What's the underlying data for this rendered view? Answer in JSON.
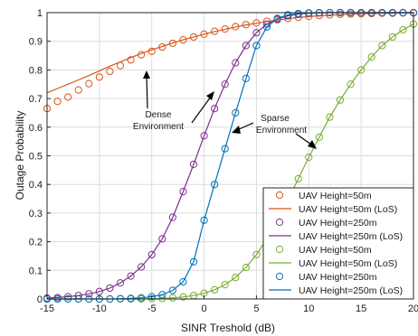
{
  "chart_data": {
    "type": "line",
    "xlabel": "SINR Treshold (dB)",
    "ylabel": "Outage Probability",
    "xlim": [
      -15,
      20
    ],
    "ylim": [
      0,
      1
    ],
    "xticks": [
      -15,
      -10,
      -5,
      0,
      5,
      10,
      15,
      20
    ],
    "yticks": [
      0,
      0.1,
      0.2,
      0.3,
      0.4,
      0.5,
      0.6,
      0.7,
      0.8,
      0.9,
      1
    ],
    "xtick_labels": [
      "-15",
      "-10",
      "-5",
      "0",
      "5",
      "10",
      "15",
      "20"
    ],
    "ytick_labels": [
      "0",
      "0.1",
      "0.2",
      "0.3",
      "0.4",
      "0.5",
      "0.6",
      "0.7",
      "0.8",
      "0.9",
      "1"
    ],
    "grid": true,
    "legend_position": "bottom-right",
    "annotations": [
      {
        "lines": [
          "Dense",
          "Environment"
        ]
      },
      {
        "lines": [
          "Sparse",
          "Environment"
        ]
      }
    ],
    "series": [
      {
        "name": "UAV Height=50m",
        "style": "markers",
        "color": "#D95319",
        "x": [
          -15,
          -14,
          -13,
          -12,
          -11,
          -10,
          -9,
          -8,
          -7,
          -6,
          -5,
          -4,
          -3,
          -2,
          -1,
          0,
          1,
          2,
          3,
          4,
          5,
          6,
          7,
          8,
          9,
          10,
          11,
          12,
          13,
          14,
          15,
          16,
          17,
          18,
          19,
          20
        ],
        "y": [
          0.665,
          0.69,
          0.705,
          0.73,
          0.752,
          0.775,
          0.795,
          0.815,
          0.835,
          0.853,
          0.865,
          0.88,
          0.893,
          0.905,
          0.915,
          0.925,
          0.935,
          0.943,
          0.951,
          0.958,
          0.964,
          0.97,
          0.975,
          0.98,
          0.984,
          0.987,
          0.99,
          0.992,
          0.994,
          0.995,
          0.996,
          0.997,
          0.998,
          0.998,
          0.999,
          0.999
        ]
      },
      {
        "name": "UAV Height=50m (LoS)",
        "style": "line",
        "color": "#D95319",
        "x": [
          -15,
          -14,
          -13,
          -12,
          -11,
          -10,
          -9,
          -8,
          -7,
          -6,
          -5,
          -4,
          -3,
          -2,
          -1,
          0,
          1,
          2,
          3,
          4,
          5,
          6,
          7,
          8,
          9,
          10,
          11,
          12,
          13,
          14,
          15,
          16,
          17,
          18,
          19,
          20
        ],
        "y": [
          0.72,
          0.735,
          0.75,
          0.765,
          0.78,
          0.797,
          0.813,
          0.828,
          0.843,
          0.857,
          0.87,
          0.882,
          0.894,
          0.905,
          0.915,
          0.925,
          0.934,
          0.942,
          0.95,
          0.957,
          0.963,
          0.969,
          0.974,
          0.979,
          0.983,
          0.986,
          0.989,
          0.991,
          0.993,
          0.995,
          0.996,
          0.997,
          0.998,
          0.998,
          0.999,
          0.999
        ]
      },
      {
        "name": "UAV Height=250m",
        "style": "markers",
        "color": "#7E2F8E",
        "x": [
          -15,
          -14,
          -13,
          -12,
          -11,
          -10,
          -9,
          -8,
          -7,
          -6,
          -5,
          -4,
          -3,
          -2,
          -1,
          0,
          1,
          2,
          3,
          4,
          5,
          6,
          7,
          8,
          9,
          10,
          11,
          12,
          13,
          14,
          15,
          16,
          17,
          18,
          19,
          20
        ],
        "y": [
          0.003,
          0.005,
          0.008,
          0.012,
          0.018,
          0.026,
          0.038,
          0.056,
          0.08,
          0.112,
          0.155,
          0.21,
          0.285,
          0.375,
          0.47,
          0.57,
          0.665,
          0.75,
          0.825,
          0.885,
          0.93,
          0.96,
          0.978,
          0.989,
          0.995,
          0.998,
          0.999,
          1.0,
          1.0,
          1.0,
          1.0,
          1.0,
          1.0,
          1.0,
          1.0,
          1.0
        ]
      },
      {
        "name": "UAV Height=250m (LoS)",
        "style": "line",
        "color": "#7E2F8E",
        "x": [
          -15,
          -14,
          -13,
          -12,
          -11,
          -10,
          -9,
          -8,
          -7,
          -6,
          -5,
          -4,
          -3,
          -2,
          -1,
          0,
          1,
          2,
          3,
          4,
          5,
          6,
          7,
          8,
          9,
          10,
          11,
          12,
          13,
          14,
          15,
          16,
          17,
          18,
          19,
          20
        ],
        "y": [
          0.003,
          0.005,
          0.008,
          0.012,
          0.018,
          0.026,
          0.038,
          0.056,
          0.08,
          0.112,
          0.155,
          0.21,
          0.285,
          0.375,
          0.47,
          0.57,
          0.665,
          0.75,
          0.825,
          0.885,
          0.93,
          0.96,
          0.978,
          0.989,
          0.995,
          0.998,
          0.999,
          1.0,
          1.0,
          1.0,
          1.0,
          1.0,
          1.0,
          1.0,
          1.0,
          1.0
        ]
      },
      {
        "name": "UAV Height=50m",
        "style": "markers",
        "color": "#77AC30",
        "x": [
          -15,
          -14,
          -13,
          -12,
          -11,
          -10,
          -9,
          -8,
          -7,
          -6,
          -5,
          -4,
          -3,
          -2,
          -1,
          0,
          1,
          2,
          3,
          4,
          5,
          6,
          7,
          8,
          9,
          10,
          11,
          12,
          13,
          14,
          15,
          16,
          17,
          18,
          19,
          20
        ],
        "y": [
          0,
          0,
          0,
          0,
          0,
          0,
          0,
          0,
          0,
          0,
          0.001,
          0.002,
          0.004,
          0.007,
          0.012,
          0.02,
          0.032,
          0.05,
          0.075,
          0.11,
          0.155,
          0.21,
          0.275,
          0.345,
          0.42,
          0.495,
          0.565,
          0.635,
          0.695,
          0.75,
          0.8,
          0.845,
          0.885,
          0.915,
          0.94,
          0.96
        ]
      },
      {
        "name": "UAV Height=50m (LoS)",
        "style": "line",
        "color": "#77AC30",
        "x": [
          -15,
          -14,
          -13,
          -12,
          -11,
          -10,
          -9,
          -8,
          -7,
          -6,
          -5,
          -4,
          -3,
          -2,
          -1,
          0,
          1,
          2,
          3,
          4,
          5,
          6,
          7,
          8,
          9,
          10,
          11,
          12,
          13,
          14,
          15,
          16,
          17,
          18,
          19,
          20
        ],
        "y": [
          0,
          0,
          0,
          0,
          0,
          0,
          0,
          0,
          0,
          0,
          0.001,
          0.002,
          0.004,
          0.007,
          0.012,
          0.02,
          0.032,
          0.05,
          0.075,
          0.11,
          0.155,
          0.21,
          0.275,
          0.345,
          0.42,
          0.495,
          0.565,
          0.635,
          0.695,
          0.75,
          0.8,
          0.845,
          0.885,
          0.915,
          0.94,
          0.96
        ]
      },
      {
        "name": "UAV Height=250m",
        "style": "markers",
        "color": "#0072BD",
        "x": [
          -15,
          -14,
          -13,
          -12,
          -11,
          -10,
          -9,
          -8,
          -7,
          -6,
          -5,
          -4,
          -3,
          -2,
          -1,
          0,
          1,
          2,
          3,
          4,
          5,
          6,
          7,
          8,
          9,
          10,
          11,
          12,
          13,
          14,
          15,
          16,
          17,
          18,
          19,
          20
        ],
        "y": [
          0,
          0,
          0,
          0,
          0,
          0,
          0,
          0.001,
          0.002,
          0.004,
          0.008,
          0.015,
          0.03,
          0.06,
          0.13,
          0.275,
          0.4,
          0.525,
          0.65,
          0.77,
          0.885,
          0.95,
          0.98,
          0.992,
          0.997,
          0.999,
          1.0,
          1.0,
          1.0,
          1.0,
          1.0,
          1.0,
          1.0,
          1.0,
          1.0,
          1.0
        ]
      },
      {
        "name": "UAV Height=250m (LoS)",
        "style": "line",
        "color": "#0072BD",
        "x": [
          -15,
          -14,
          -13,
          -12,
          -11,
          -10,
          -9,
          -8,
          -7,
          -6,
          -5,
          -4,
          -3,
          -2,
          -1,
          0,
          1,
          2,
          3,
          4,
          5,
          6,
          7,
          8,
          9,
          10,
          11,
          12,
          13,
          14,
          15,
          16,
          17,
          18,
          19,
          20
        ],
        "y": [
          0,
          0,
          0,
          0,
          0,
          0,
          0,
          0.001,
          0.002,
          0.004,
          0.008,
          0.015,
          0.03,
          0.06,
          0.13,
          0.275,
          0.4,
          0.525,
          0.65,
          0.77,
          0.885,
          0.95,
          0.98,
          0.992,
          0.997,
          0.999,
          1.0,
          1.0,
          1.0,
          1.0,
          1.0,
          1.0,
          1.0,
          1.0,
          1.0,
          1.0
        ]
      }
    ]
  }
}
